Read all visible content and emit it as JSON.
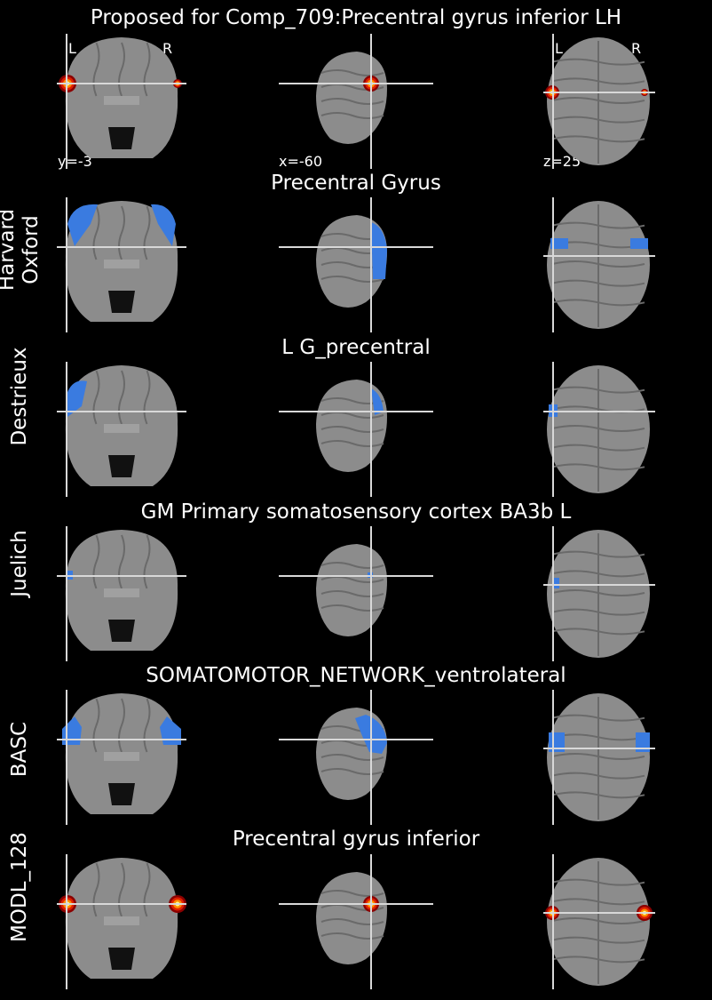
{
  "header": {
    "title": "Proposed for Comp_709:Precentral gyrus inferior LH",
    "orientation_left": "L",
    "orientation_right": "R",
    "coords": {
      "coronal": "y=-3",
      "sagittal": "x=-60",
      "axial": "z=25"
    }
  },
  "rows": [
    {
      "atlas": "",
      "atlas_lines": [],
      "region": "",
      "overlay": "heat",
      "colors": {
        "overlay": "#ffcc00"
      }
    },
    {
      "atlas": "Harvard Oxford",
      "atlas_lines": [
        "Harvard",
        "Oxford"
      ],
      "region": "Precentral Gyrus",
      "overlay": "blue"
    },
    {
      "atlas": "Destrieux",
      "atlas_lines": [
        "Destrieux"
      ],
      "region": "L G_precentral",
      "overlay": "blue"
    },
    {
      "atlas": "Juelich",
      "atlas_lines": [
        "Juelich"
      ],
      "region": "GM Primary somatosensory cortex BA3b L",
      "overlay": "blue"
    },
    {
      "atlas": "BASC",
      "atlas_lines": [
        "BASC"
      ],
      "region": "SOMATOMOTOR_NETWORK_ventrolateral",
      "overlay": "blue"
    },
    {
      "atlas": "MODL_128",
      "atlas_lines": [
        "MODL_128"
      ],
      "region": "Precentral gyrus inferior",
      "overlay": "heat"
    }
  ],
  "colors": {
    "background": "#000000",
    "text": "#ffffff",
    "brain": "#8c8c8c",
    "crosshair": "#d8d8d8",
    "atlas_overlay": "#3a7be0",
    "heat_overlay": "#ff7a00"
  }
}
